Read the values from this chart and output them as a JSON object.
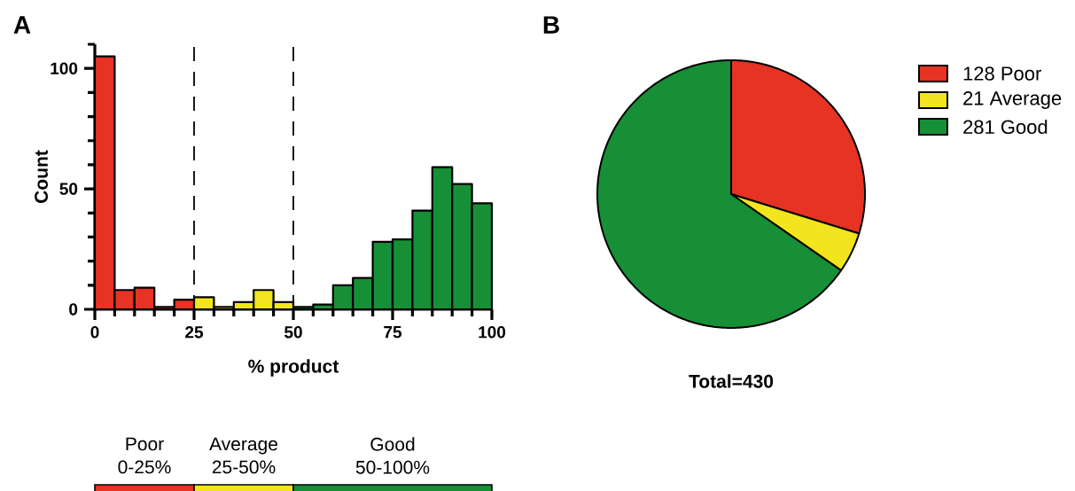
{
  "chart_data": [
    {
      "type": "histogram",
      "title": "A",
      "xlabel": "% product",
      "ylabel": "Count",
      "bins": [
        0,
        5,
        10,
        15,
        20,
        25,
        30,
        35,
        40,
        45,
        50,
        55,
        60,
        65,
        70,
        75,
        80,
        85,
        90,
        95,
        100
      ],
      "values": [
        105,
        8,
        9,
        1,
        4,
        5,
        1,
        3,
        8,
        3,
        1,
        2,
        10,
        13,
        28,
        29,
        41,
        59,
        52,
        44
      ],
      "colors": [
        "#e63323",
        "#e63323",
        "#e63323",
        "#e63323",
        "#e63323",
        "#f2e51e",
        "#f2e51e",
        "#f2e51e",
        "#f2e51e",
        "#f2e51e",
        "#178f37",
        "#178f37",
        "#178f37",
        "#178f37",
        "#178f37",
        "#178f37",
        "#178f37",
        "#178f37",
        "#178f37",
        "#178f37"
      ],
      "xlim": [
        0,
        100
      ],
      "ylim": [
        0,
        110
      ],
      "xticks": [
        0,
        {
          "value": 5,
          "label": null
        },
        {
          "value": 10,
          "label": null
        },
        {
          "value": 15,
          "label": null
        },
        {
          "value": 20,
          "label": null
        },
        25,
        {
          "value": 30,
          "label": null
        },
        {
          "value": 35,
          "label": null
        },
        {
          "value": 40,
          "label": null
        },
        {
          "value": 45,
          "label": null
        },
        50,
        {
          "value": 55,
          "label": null
        },
        {
          "value": 60,
          "label": null
        },
        {
          "value": 65,
          "label": null
        },
        {
          "value": 70,
          "label": null
        },
        75,
        {
          "value": 80,
          "label": null
        },
        {
          "value": 85,
          "label": null
        },
        {
          "value": 90,
          "label": null
        },
        {
          "value": 95,
          "label": null
        },
        100
      ],
      "yticks": [
        0,
        {
          "value": 10,
          "label": null
        },
        {
          "value": 20,
          "label": null
        },
        {
          "value": 30,
          "label": null
        },
        {
          "value": 40,
          "label": null
        },
        50,
        {
          "value": 60,
          "label": null
        },
        {
          "value": 70,
          "label": null
        },
        {
          "value": 80,
          "label": null
        },
        {
          "value": 90,
          "label": null
        },
        100,
        {
          "value": 110,
          "label": null
        }
      ],
      "ref_lines": [
        {
          "axis": "x",
          "value": 25,
          "color": "#000000",
          "line_style": "dashed"
        },
        {
          "axis": "x",
          "value": 50,
          "color": "#000000",
          "line_style": "dashed"
        }
      ]
    },
    {
      "type": "bar",
      "orientation": "horizontal",
      "stacked": true,
      "categories": [
        null
      ],
      "xlim": [
        0,
        100
      ],
      "tick_labels": false,
      "series": [
        {
          "name": "Poor 0-25%",
          "color": "#e63323",
          "values": [
            25
          ]
        },
        {
          "name": "Average 25-50%",
          "color": "#f2e51e",
          "values": [
            25
          ]
        },
        {
          "name": "Good 50-100%",
          "color": "#178f37",
          "values": [
            50
          ]
        }
      ]
    },
    {
      "type": "pie",
      "title": "B",
      "categories": [
        "128 Poor",
        "21 Average",
        "281 Good"
      ],
      "values": [
        128,
        21,
        281
      ],
      "colors": [
        "#e63323",
        "#f2e51e",
        "#178f37"
      ],
      "legend": "right",
      "annotations": [
        "Total=430"
      ]
    }
  ]
}
